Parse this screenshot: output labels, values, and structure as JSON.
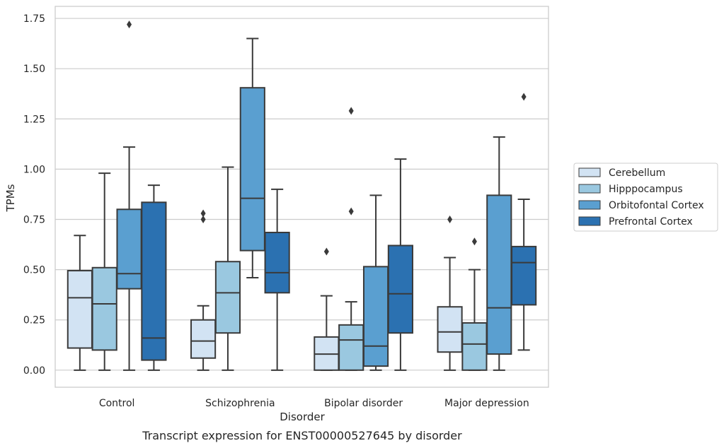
{
  "chart_data": {
    "type": "box",
    "caption": "Transcript expression for ENST00000527645 by disorder",
    "xlabel": "Disorder",
    "ylabel": "TPMs",
    "ylim": [
      -0.085,
      1.81
    ],
    "yticks": [
      0.0,
      0.25,
      0.5,
      0.75,
      1.0,
      1.25,
      1.5,
      1.75
    ],
    "ytick_labels": [
      "0.00",
      "0.25",
      "0.50",
      "0.75",
      "1.00",
      "1.25",
      "1.50",
      "1.75"
    ],
    "grid": "horizontal",
    "legend_position": "right",
    "categories": [
      "Control",
      "Schizophrenia",
      "Bipolar disorder",
      "Major depression"
    ],
    "series": [
      {
        "name": "Cerebellum",
        "color": "#d2e3f3",
        "boxes": [
          {
            "whislo": 0.0,
            "q1": 0.11,
            "med": 0.36,
            "q3": 0.495,
            "whishi": 0.67,
            "fliers": []
          },
          {
            "whislo": 0.0,
            "q1": 0.06,
            "med": 0.145,
            "q3": 0.25,
            "whishi": 0.32,
            "fliers": [
              0.75,
              0.78
            ]
          },
          {
            "whislo": 0.0,
            "q1": 0.0,
            "med": 0.08,
            "q3": 0.165,
            "whishi": 0.37,
            "fliers": [
              0.59
            ]
          },
          {
            "whislo": 0.0,
            "q1": 0.09,
            "med": 0.19,
            "q3": 0.315,
            "whishi": 0.56,
            "fliers": [
              0.75
            ]
          }
        ]
      },
      {
        "name": "Hipppocampus",
        "color": "#9ac8e0",
        "boxes": [
          {
            "whislo": 0.0,
            "q1": 0.1,
            "med": 0.33,
            "q3": 0.51,
            "whishi": 0.98,
            "fliers": []
          },
          {
            "whislo": 0.0,
            "q1": 0.185,
            "med": 0.385,
            "q3": 0.54,
            "whishi": 1.01,
            "fliers": []
          },
          {
            "whislo": 0.0,
            "q1": 0.0,
            "med": 0.15,
            "q3": 0.225,
            "whishi": 0.34,
            "fliers": [
              0.79,
              1.29
            ]
          },
          {
            "whislo": 0.0,
            "q1": 0.0,
            "med": 0.13,
            "q3": 0.235,
            "whishi": 0.5,
            "fliers": [
              0.64
            ]
          }
        ]
      },
      {
        "name": "Orbitofontal Cortex",
        "color": "#5a9fd0",
        "boxes": [
          {
            "whislo": 0.0,
            "q1": 0.405,
            "med": 0.48,
            "q3": 0.8,
            "whishi": 1.11,
            "fliers": [
              1.72
            ]
          },
          {
            "whislo": 0.46,
            "q1": 0.595,
            "med": 0.855,
            "q3": 1.405,
            "whishi": 1.65,
            "fliers": []
          },
          {
            "whislo": 0.0,
            "q1": 0.02,
            "med": 0.12,
            "q3": 0.515,
            "whishi": 0.87,
            "fliers": []
          },
          {
            "whislo": 0.0,
            "q1": 0.08,
            "med": 0.31,
            "q3": 0.87,
            "whishi": 1.16,
            "fliers": []
          }
        ]
      },
      {
        "name": "Prefrontal Cortex",
        "color": "#2b71b1",
        "boxes": [
          {
            "whislo": 0.0,
            "q1": 0.05,
            "med": 0.16,
            "q3": 0.835,
            "whishi": 0.92,
            "fliers": []
          },
          {
            "whislo": 0.0,
            "q1": 0.385,
            "med": 0.485,
            "q3": 0.685,
            "whishi": 0.9,
            "fliers": []
          },
          {
            "whislo": 0.0,
            "q1": 0.185,
            "med": 0.38,
            "q3": 0.62,
            "whishi": 1.05,
            "fliers": []
          },
          {
            "whislo": 0.1,
            "q1": 0.325,
            "med": 0.535,
            "q3": 0.615,
            "whishi": 0.85,
            "fliers": [
              1.36
            ]
          }
        ]
      }
    ]
  }
}
